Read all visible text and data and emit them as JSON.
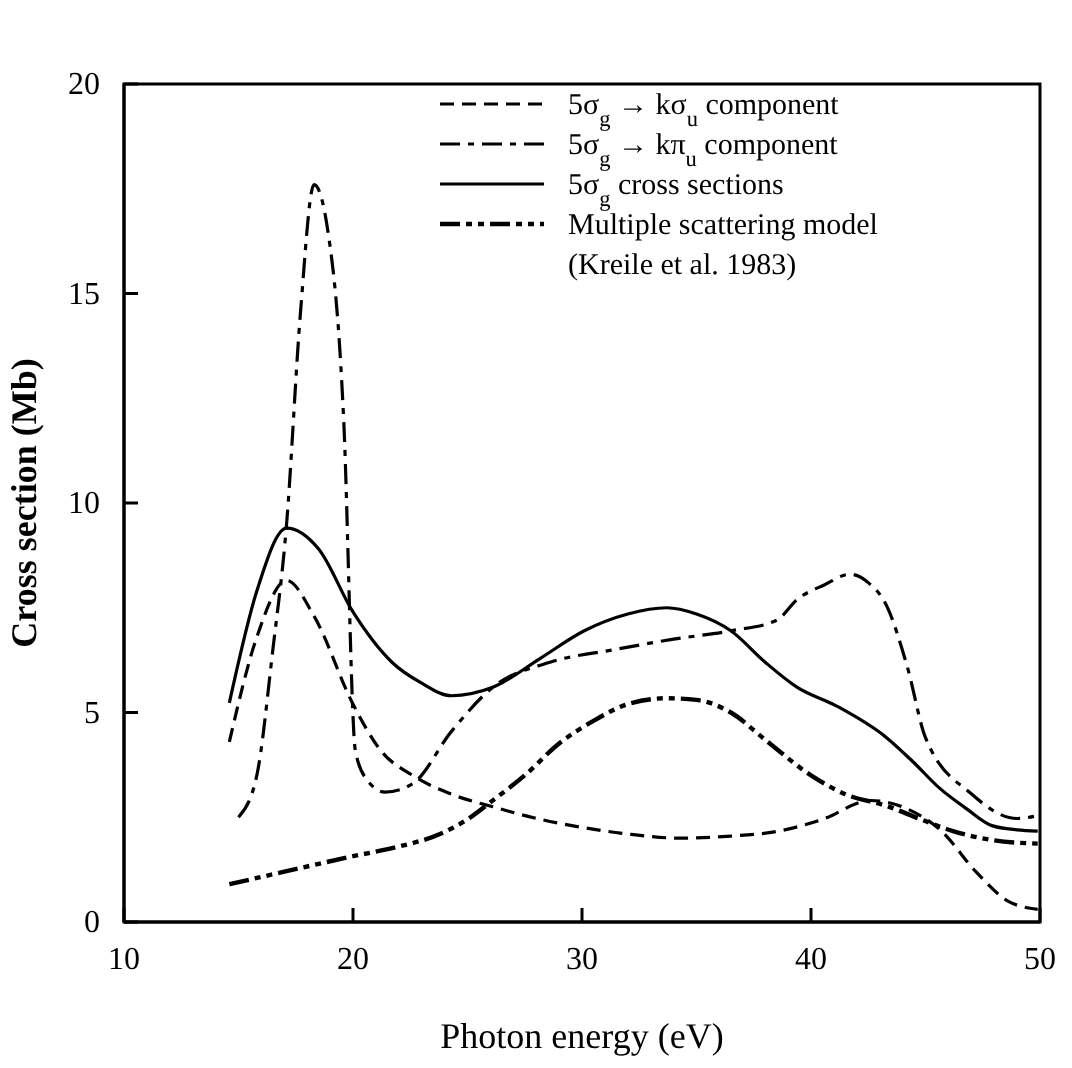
{
  "chart_data": {
    "type": "line",
    "xlabel": "Photon energy (eV)",
    "ylabel": "Cross section (Mb)",
    "xlim": [
      10,
      50
    ],
    "ylim": [
      0,
      20
    ],
    "xticks": [
      10,
      20,
      30,
      40,
      50
    ],
    "yticks": [
      0,
      5,
      10,
      15,
      20
    ],
    "grid": false,
    "legend": "top right",
    "marker": "none",
    "series": [
      {
        "name": "5σ$_{g}$ → kσ$_{u}$ component",
        "color": "#000000",
        "line_style": "dashed",
        "x": [
          14.6,
          15.8,
          17.1,
          18.3,
          20,
          21.2,
          22.6,
          24.3,
          26.1,
          28.6,
          30.1,
          32,
          34.3,
          36.5,
          38.6,
          40.5,
          42.6,
          44.2,
          45.7,
          47.2,
          48.6,
          49.9
        ],
        "values": [
          4.3,
          6.8,
          8.15,
          7.3,
          5.2,
          4.1,
          3.5,
          3.05,
          2.75,
          2.4,
          2.25,
          2.1,
          2.0,
          2.05,
          2.17,
          2.45,
          2.9,
          2.7,
          2.17,
          1.2,
          0.5,
          0.3
        ]
      },
      {
        "name": "5σ$_{g}$ → kπ$_{u}$ component",
        "color": "#000000",
        "line_style": "dashdot",
        "x": [
          15.0,
          15.8,
          16.5,
          17.1,
          17.7,
          18.3,
          18.9,
          19.6,
          20.1,
          20.6,
          21.4,
          22.6,
          24.3,
          26.1,
          28.6,
          31.4,
          34,
          36.5,
          38.5,
          39.4,
          40.6,
          41.7,
          42.5,
          43.3,
          44.2,
          45,
          47,
          49,
          49.9
        ],
        "values": [
          2.5,
          3.5,
          6.5,
          9.5,
          14.5,
          17.6,
          16.5,
          11.9,
          4.1,
          3.4,
          3.1,
          3.3,
          4.55,
          5.6,
          6.2,
          6.5,
          6.75,
          6.95,
          7.2,
          7.7,
          8.05,
          8.3,
          8.1,
          7.55,
          6.1,
          4.4,
          3.06,
          2.47,
          2.54
        ]
      },
      {
        "name": "5σ$_{g}$ cross sections",
        "color": "#000000",
        "line_style": "solid",
        "x": [
          14.6,
          15.8,
          17.1,
          18.5,
          20,
          21.7,
          23,
          24.3,
          26.1,
          28.2,
          30.1,
          32,
          33.7,
          35,
          36.5,
          38,
          39.4,
          41.1,
          43.3,
          44.5,
          45.6,
          46.8,
          47.9,
          49,
          49.9
        ],
        "values": [
          5.23,
          7.9,
          9.4,
          8.9,
          7.4,
          6.2,
          5.7,
          5.4,
          5.6,
          6.3,
          6.95,
          7.35,
          7.5,
          7.35,
          6.95,
          6.2,
          5.6,
          5.16,
          4.4,
          3.8,
          3.2,
          2.7,
          2.3,
          2.2,
          2.17
        ]
      },
      {
        "name": "Multiple scattering model\n(Kreile et al. 1983)",
        "color": "#000000",
        "line_style": "dashdotdot",
        "x": [
          14.6,
          17,
          20,
          22,
          23.8,
          25,
          26.1,
          27.5,
          29,
          30.5,
          32,
          33.7,
          35,
          36.5,
          38,
          40,
          41.5,
          43.3,
          44.8,
          46.2,
          48,
          49.9
        ],
        "values": [
          0.9,
          1.2,
          1.57,
          1.8,
          2.1,
          2.45,
          2.9,
          3.5,
          4.26,
          4.8,
          5.2,
          5.34,
          5.3,
          5.0,
          4.35,
          3.5,
          3.05,
          2.77,
          2.45,
          2.17,
          1.95,
          1.87
        ]
      }
    ]
  }
}
